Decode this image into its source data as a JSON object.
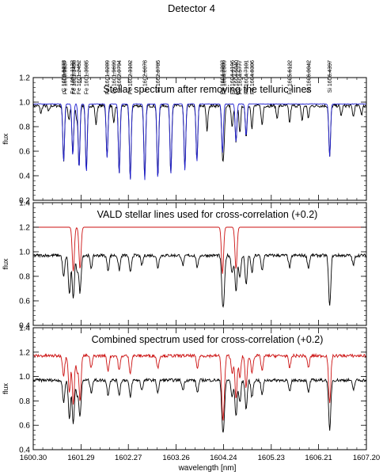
{
  "figure": {
    "title": "Detector 4",
    "xlabel": "wavelength [nm]",
    "x_ticks": [
      "1600.30",
      "1601.29",
      "1602.27",
      "1603.26",
      "1604.24",
      "1605.23",
      "1606.21",
      "1607.20"
    ],
    "colors": {
      "stellar": "#000000",
      "telluric_fit": "#1f1fd0",
      "model": "#cc1111"
    }
  },
  "line_ids": [
    {
      "label": "C 1600.9273",
      "w": 1600.9273
    },
    {
      "label": "Fe 1600.9537",
      "w": 1600.9537
    },
    {
      "label": "Fe 1601.1133",
      "w": 1601.1133
    },
    {
      "label": "Fe 1601.1458",
      "w": 1601.1458
    },
    {
      "label": "Fe 1601.2452",
      "w": 1601.2452
    },
    {
      "label": "Fe 1601.3985",
      "w": 1601.3985
    },
    {
      "label": "Fe 1601.8289",
      "w": 1601.8289
    },
    {
      "label": "Cr 1601.9699",
      "w": 1601.9699
    },
    {
      "label": "Si 1602.0794",
      "w": 1602.0794
    },
    {
      "label": "Fe 1602.3102",
      "w": 1602.3102
    },
    {
      "label": "C 1602.6078",
      "w": 1602.6078
    },
    {
      "label": "Si 1602.8785",
      "w": 1602.8785
    },
    {
      "label": "Fe 1604.2203",
      "w": 1604.2203
    },
    {
      "label": "Fe 1604.2509",
      "w": 1604.2509
    },
    {
      "label": "Fe 1604.4196",
      "w": 1604.4196
    },
    {
      "label": "Fe 1604.5040",
      "w": 1604.504
    },
    {
      "label": "Fe 1604.5777",
      "w": 1604.5777
    },
    {
      "label": "Fe 1604.7101",
      "w": 1604.7101
    },
    {
      "label": "Fe 1604.8306",
      "w": 1604.8306
    },
    {
      "label": "Fe 1605.6122",
      "w": 1605.6122
    },
    {
      "label": "Si 1606.0042",
      "w": 1606.0042
    },
    {
      "label": "Si 1606.4397",
      "w": 1606.4397
    }
  ],
  "chart_data": [
    {
      "type": "line",
      "title": "Stellar spectrum after removing the telluric lines",
      "xlabel": "",
      "ylabel": "flux",
      "xlim": [
        1600.3,
        1607.2
      ],
      "ylim": [
        0.2,
        1.2
      ],
      "y_ticks": [
        "0.2",
        "0.4",
        "0.6",
        "0.8",
        "1.0",
        "1.2"
      ],
      "series": [
        {
          "color": "#000000",
          "continuum": 0.97,
          "lines": [
            {
              "x": 1600.46,
              "depth": 0.06
            },
            {
              "x": 1600.62,
              "depth": 0.05
            },
            {
              "x": 1600.93,
              "depth": 0.45
            },
            {
              "x": 1601.04,
              "depth": 0.12
            },
            {
              "x": 1601.12,
              "depth": 0.4
            },
            {
              "x": 1601.2,
              "depth": 0.1
            },
            {
              "x": 1601.25,
              "depth": 0.5
            },
            {
              "x": 1601.4,
              "depth": 0.54
            },
            {
              "x": 1601.6,
              "depth": 0.15
            },
            {
              "x": 1601.83,
              "depth": 0.42
            },
            {
              "x": 1601.97,
              "depth": 0.15
            },
            {
              "x": 1602.08,
              "depth": 0.55
            },
            {
              "x": 1602.31,
              "depth": 0.6
            },
            {
              "x": 1602.61,
              "depth": 0.6
            },
            {
              "x": 1602.88,
              "depth": 0.59
            },
            {
              "x": 1603.15,
              "depth": 0.55
            },
            {
              "x": 1603.44,
              "depth": 0.52
            },
            {
              "x": 1603.69,
              "depth": 0.45
            },
            {
              "x": 1603.9,
              "depth": 0.2
            },
            {
              "x": 1604.22,
              "depth": 0.38
            },
            {
              "x": 1604.25,
              "depth": 0.25
            },
            {
              "x": 1604.42,
              "depth": 0.18
            },
            {
              "x": 1604.5,
              "depth": 0.3
            },
            {
              "x": 1604.58,
              "depth": 0.22
            },
            {
              "x": 1604.71,
              "depth": 0.25
            },
            {
              "x": 1604.83,
              "depth": 0.18
            },
            {
              "x": 1605.04,
              "depth": 0.16
            },
            {
              "x": 1605.35,
              "depth": 0.1
            },
            {
              "x": 1605.61,
              "depth": 0.14
            },
            {
              "x": 1605.87,
              "depth": 0.12
            },
            {
              "x": 1606.0,
              "depth": 0.1
            },
            {
              "x": 1606.44,
              "depth": 0.42
            },
            {
              "x": 1606.68,
              "depth": 0.08
            },
            {
              "x": 1606.93,
              "depth": 0.09
            },
            {
              "x": 1607.1,
              "depth": 0.07
            }
          ]
        },
        {
          "color": "#1f1fd0",
          "continuum": 0.985,
          "lines": [
            {
              "x": 1600.93,
              "depth": 0.47
            },
            {
              "x": 1601.12,
              "depth": 0.42
            },
            {
              "x": 1601.25,
              "depth": 0.52
            },
            {
              "x": 1601.4,
              "depth": 0.56
            },
            {
              "x": 1601.83,
              "depth": 0.44
            },
            {
              "x": 1602.08,
              "depth": 0.57
            },
            {
              "x": 1602.31,
              "depth": 0.62
            },
            {
              "x": 1602.61,
              "depth": 0.62
            },
            {
              "x": 1602.88,
              "depth": 0.61
            },
            {
              "x": 1603.15,
              "depth": 0.57
            },
            {
              "x": 1603.44,
              "depth": 0.54
            },
            {
              "x": 1603.69,
              "depth": 0.47
            },
            {
              "x": 1604.22,
              "depth": 0.4
            },
            {
              "x": 1604.5,
              "depth": 0.31
            },
            {
              "x": 1604.71,
              "depth": 0.26
            },
            {
              "x": 1606.44,
              "depth": 0.43
            }
          ]
        }
      ]
    },
    {
      "type": "line",
      "title": "VALD stellar lines used for cross-correlation (+0.2)",
      "xlabel": "",
      "ylabel": "flux",
      "xlim": [
        1600.3,
        1607.2
      ],
      "ylim": [
        0.4,
        1.4
      ],
      "y_ticks": [
        "0.4",
        "0.6",
        "0.8",
        "1.0",
        "1.2",
        "1.4"
      ],
      "series": [
        {
          "color": "#000000",
          "continuum": 0.97,
          "lines": [
            {
              "x": 1600.93,
              "depth": 0.18
            },
            {
              "x": 1601.05,
              "depth": 0.32
            },
            {
              "x": 1601.13,
              "depth": 0.36
            },
            {
              "x": 1601.21,
              "depth": 0.12
            },
            {
              "x": 1601.27,
              "depth": 0.3
            },
            {
              "x": 1601.5,
              "depth": 0.1
            },
            {
              "x": 1601.85,
              "depth": 0.12
            },
            {
              "x": 1602.08,
              "depth": 0.12
            },
            {
              "x": 1602.31,
              "depth": 0.14
            },
            {
              "x": 1602.55,
              "depth": 0.08
            },
            {
              "x": 1602.88,
              "depth": 0.1
            },
            {
              "x": 1603.4,
              "depth": 0.08
            },
            {
              "x": 1603.7,
              "depth": 0.1
            },
            {
              "x": 1604.22,
              "depth": 0.3
            },
            {
              "x": 1604.25,
              "depth": 0.24
            },
            {
              "x": 1604.42,
              "depth": 0.14
            },
            {
              "x": 1604.5,
              "depth": 0.3
            },
            {
              "x": 1604.58,
              "depth": 0.18
            },
            {
              "x": 1604.71,
              "depth": 0.24
            },
            {
              "x": 1604.83,
              "depth": 0.14
            },
            {
              "x": 1605.04,
              "depth": 0.12
            },
            {
              "x": 1605.61,
              "depth": 0.1
            },
            {
              "x": 1606.0,
              "depth": 0.1
            },
            {
              "x": 1606.44,
              "depth": 0.42
            },
            {
              "x": 1606.93,
              "depth": 0.08
            }
          ]
        },
        {
          "color": "#cc1111",
          "continuum": 1.2,
          "lines": [
            {
              "x": 1601.13,
              "depth": 0.36
            },
            {
              "x": 1601.27,
              "depth": 0.34
            },
            {
              "x": 1604.22,
              "depth": 0.38
            },
            {
              "x": 1604.5,
              "depth": 0.34
            }
          ]
        }
      ]
    },
    {
      "type": "line",
      "title": "Combined spectrum used for cross-correlation (+0.2)",
      "xlabel": "wavelength [nm]",
      "ylabel": "flux",
      "xlim": [
        1600.3,
        1607.2
      ],
      "ylim": [
        0.4,
        1.4
      ],
      "y_ticks": [
        "0.4",
        "0.6",
        "0.8",
        "1.0",
        "1.2",
        "1.4"
      ],
      "series": [
        {
          "color": "#000000",
          "continuum": 0.97,
          "lines": [
            {
              "x": 1600.93,
              "depth": 0.18
            },
            {
              "x": 1601.05,
              "depth": 0.32
            },
            {
              "x": 1601.13,
              "depth": 0.36
            },
            {
              "x": 1601.21,
              "depth": 0.12
            },
            {
              "x": 1601.27,
              "depth": 0.3
            },
            {
              "x": 1601.5,
              "depth": 0.1
            },
            {
              "x": 1601.85,
              "depth": 0.12
            },
            {
              "x": 1602.08,
              "depth": 0.12
            },
            {
              "x": 1602.31,
              "depth": 0.14
            },
            {
              "x": 1602.55,
              "depth": 0.08
            },
            {
              "x": 1602.88,
              "depth": 0.1
            },
            {
              "x": 1603.4,
              "depth": 0.08
            },
            {
              "x": 1603.7,
              "depth": 0.1
            },
            {
              "x": 1604.22,
              "depth": 0.3
            },
            {
              "x": 1604.25,
              "depth": 0.24
            },
            {
              "x": 1604.42,
              "depth": 0.14
            },
            {
              "x": 1604.5,
              "depth": 0.3
            },
            {
              "x": 1604.58,
              "depth": 0.18
            },
            {
              "x": 1604.71,
              "depth": 0.24
            },
            {
              "x": 1604.83,
              "depth": 0.14
            },
            {
              "x": 1605.04,
              "depth": 0.12
            },
            {
              "x": 1605.61,
              "depth": 0.1
            },
            {
              "x": 1606.0,
              "depth": 0.1
            },
            {
              "x": 1606.44,
              "depth": 0.42
            },
            {
              "x": 1606.93,
              "depth": 0.08
            }
          ]
        },
        {
          "color": "#cc1111",
          "continuum": 1.17,
          "lines": [
            {
              "x": 1600.93,
              "depth": 0.16
            },
            {
              "x": 1601.05,
              "depth": 0.3
            },
            {
              "x": 1601.13,
              "depth": 0.4
            },
            {
              "x": 1601.21,
              "depth": 0.12
            },
            {
              "x": 1601.27,
              "depth": 0.36
            },
            {
              "x": 1601.5,
              "depth": 0.1
            },
            {
              "x": 1601.85,
              "depth": 0.12
            },
            {
              "x": 1602.08,
              "depth": 0.12
            },
            {
              "x": 1602.31,
              "depth": 0.14
            },
            {
              "x": 1602.88,
              "depth": 0.1
            },
            {
              "x": 1603.7,
              "depth": 0.1
            },
            {
              "x": 1604.22,
              "depth": 0.4
            },
            {
              "x": 1604.25,
              "depth": 0.26
            },
            {
              "x": 1604.42,
              "depth": 0.14
            },
            {
              "x": 1604.5,
              "depth": 0.36
            },
            {
              "x": 1604.58,
              "depth": 0.18
            },
            {
              "x": 1604.71,
              "depth": 0.26
            },
            {
              "x": 1604.83,
              "depth": 0.14
            },
            {
              "x": 1605.04,
              "depth": 0.12
            },
            {
              "x": 1605.61,
              "depth": 0.1
            },
            {
              "x": 1606.0,
              "depth": 0.1
            },
            {
              "x": 1606.44,
              "depth": 0.4
            }
          ]
        }
      ]
    }
  ]
}
